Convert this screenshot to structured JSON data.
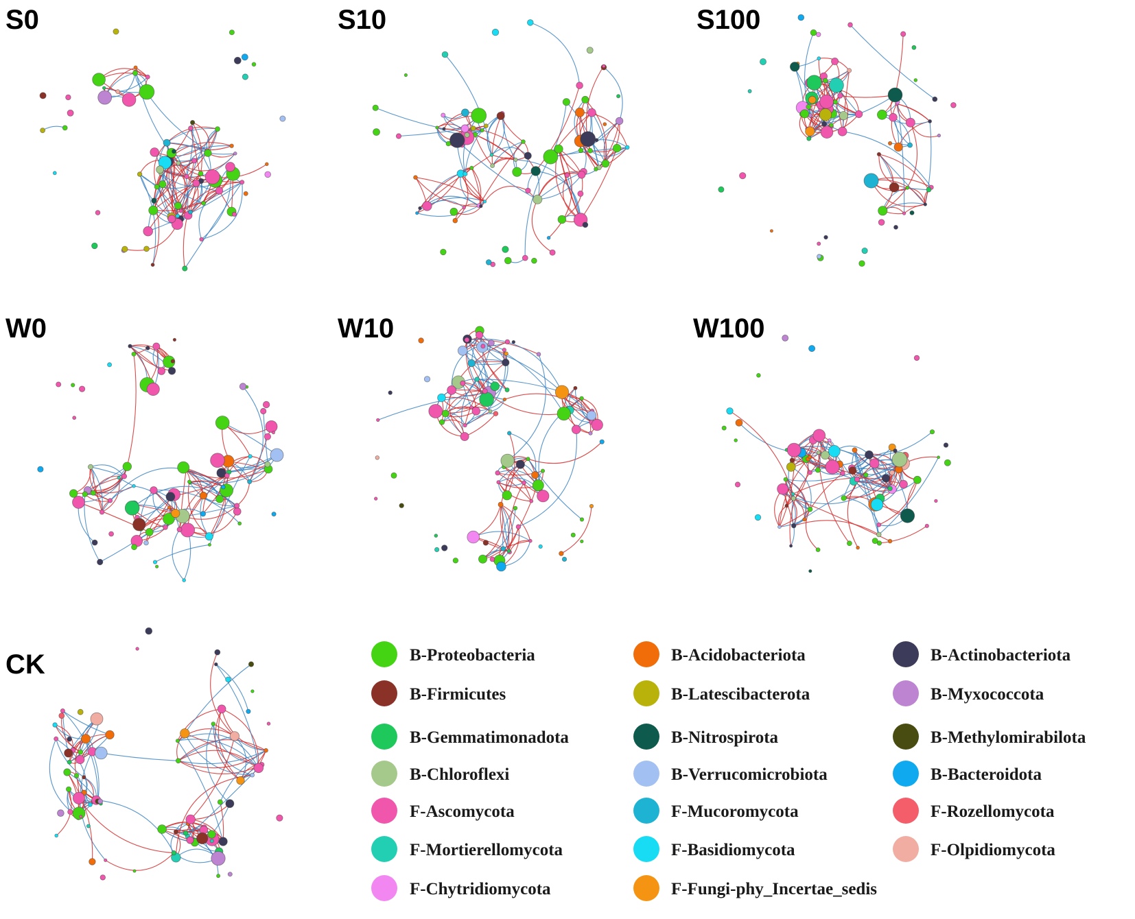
{
  "networks": [
    {
      "label": "S0"
    },
    {
      "label": "S10"
    },
    {
      "label": "S100"
    },
    {
      "label": "W0"
    },
    {
      "label": "W10"
    },
    {
      "label": "W100"
    },
    {
      "label": "CK"
    }
  ],
  "edge_colors": {
    "positive": "#d42a2a",
    "negative": "#3c84c2"
  },
  "legend": [
    {
      "label": "B-Proteobacteria",
      "color": "#44d414"
    },
    {
      "label": "B-Acidobacteriota",
      "color": "#f06d0a"
    },
    {
      "label": "B-Actinobacteriota",
      "color": "#3c3b5a"
    },
    {
      "label": "B-Firmicutes",
      "color": "#8b3228"
    },
    {
      "label": "B-Latescibacterota",
      "color": "#b9b20a"
    },
    {
      "label": "B-Myxococcota",
      "color": "#bd84d2"
    },
    {
      "label": "B-Gemmatimonadota",
      "color": "#1ec85a"
    },
    {
      "label": "B-Nitrospirota",
      "color": "#0e5a4c"
    },
    {
      "label": "B-Methylomirabilota",
      "color": "#494c10"
    },
    {
      "label": "B-Chloroflexi",
      "color": "#a5c98a"
    },
    {
      "label": "B-Verrucomicrobiota",
      "color": "#a3c0f2"
    },
    {
      "label": "B-Bacteroidota",
      "color": "#0fa9ef"
    },
    {
      "label": "F-Ascomycota",
      "color": "#f056ac"
    },
    {
      "label": "F-Mucoromycota",
      "color": "#1fb3d3"
    },
    {
      "label": "F-Rozellomycota",
      "color": "#f45e6a"
    },
    {
      "label": "F-Mortierellomycota",
      "color": "#22cfb3"
    },
    {
      "label": "F-Basidiomycota",
      "color": "#17dcf3"
    },
    {
      "label": "F-Olpidiomycota",
      "color": "#f1ada2"
    },
    {
      "label": "F-Chytridiomycota",
      "color": "#f287f2"
    },
    {
      "label": "F-Fungi-phy_Incertae_sedis",
      "color": "#f59312"
    }
  ]
}
